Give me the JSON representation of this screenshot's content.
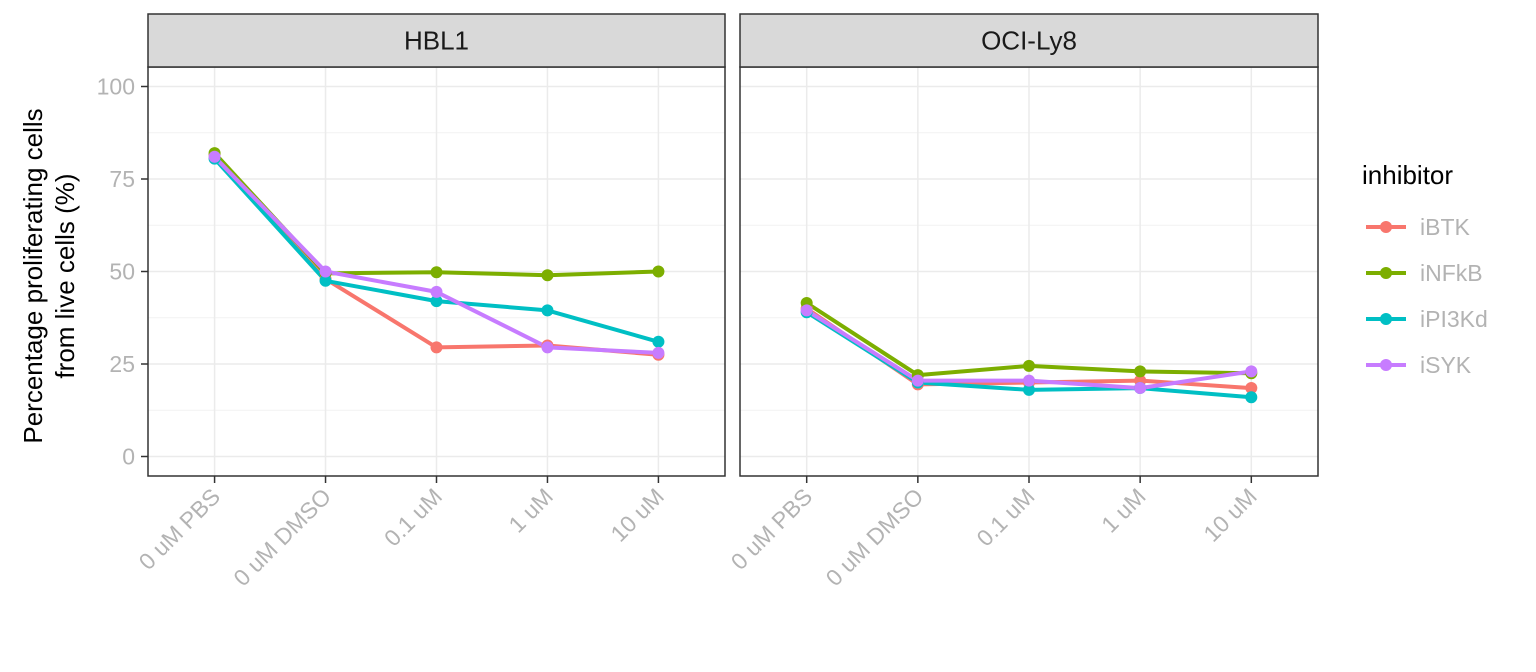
{
  "chart_data": {
    "type": "line",
    "ylabel": [
      "Percentage proliferating cells",
      "from live cells (%)"
    ],
    "ylim": [
      -5,
      115
    ],
    "y_ticks": [
      0,
      25,
      50,
      75,
      100
    ],
    "categories": [
      "0 uM PBS",
      "0 uM DMSO",
      "0.1 uM",
      "1 uM",
      "10 uM"
    ],
    "grid": true,
    "legend": {
      "title": "inhibitor",
      "placement": "right",
      "entries": [
        "iBTK",
        "iNFkB",
        "iPI3Kd",
        "iSYK"
      ]
    },
    "colors": {
      "iBTK": "#F8766D",
      "iNFkB": "#7CAE00",
      "iPI3Kd": "#00BFC4",
      "iSYK": "#C77CFF"
    },
    "panels": [
      {
        "title": "HBL1",
        "series": [
          {
            "name": "iBTK",
            "values": [
              81.5,
              48.0,
              29.5,
              30.0,
              27.5
            ]
          },
          {
            "name": "iNFkB",
            "values": [
              82.0,
              49.5,
              49.8,
              49.0,
              50.0
            ]
          },
          {
            "name": "iPI3Kd",
            "values": [
              80.5,
              47.5,
              42.0,
              39.5,
              31.0
            ]
          },
          {
            "name": "iSYK",
            "values": [
              81.0,
              50.0,
              44.5,
              29.5,
              28.0
            ]
          }
        ]
      },
      {
        "title": "OCI-Ly8",
        "series": [
          {
            "name": "iBTK",
            "values": [
              40.0,
              19.5,
              20.0,
              20.5,
              18.5
            ]
          },
          {
            "name": "iNFkB",
            "values": [
              41.5,
              22.0,
              24.5,
              23.0,
              22.5
            ]
          },
          {
            "name": "iPI3Kd",
            "values": [
              39.0,
              20.0,
              18.0,
              18.5,
              16.0
            ]
          },
          {
            "name": "iSYK",
            "values": [
              39.5,
              20.5,
              20.5,
              18.5,
              23.0
            ]
          }
        ]
      }
    ]
  }
}
